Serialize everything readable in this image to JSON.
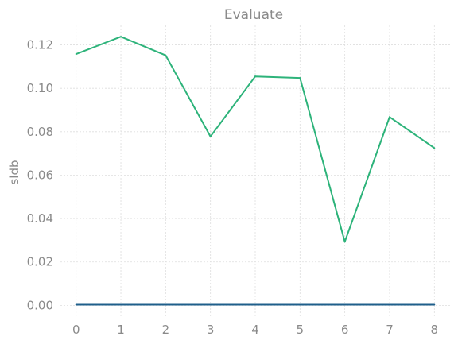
{
  "chart_data": {
    "type": "line",
    "title": "Evaluate",
    "xlabel": "",
    "ylabel": "sldb",
    "x": [
      0,
      1,
      2,
      3,
      4,
      5,
      6,
      7,
      8
    ],
    "x_ticks": [
      "0",
      "1",
      "2",
      "3",
      "4",
      "5",
      "6",
      "7",
      "8"
    ],
    "y_ticks": [
      "0.00",
      "0.02",
      "0.04",
      "0.06",
      "0.08",
      "0.10",
      "0.12"
    ],
    "xlim": [
      -0.35,
      8.35
    ],
    "ylim": [
      -0.005,
      0.129
    ],
    "grid": true,
    "series": [
      {
        "color": "#2db37a",
        "values": [
          0.1158,
          0.1238,
          0.1152,
          0.0778,
          0.1055,
          0.1048,
          0.0293,
          0.0868,
          0.0725
        ]
      },
      {
        "color": "#1f5f8b",
        "values": [
          0.0003,
          0.0003,
          0.0003,
          0.0003,
          0.0003,
          0.0003,
          0.0003,
          0.0003,
          0.0003
        ]
      }
    ]
  }
}
